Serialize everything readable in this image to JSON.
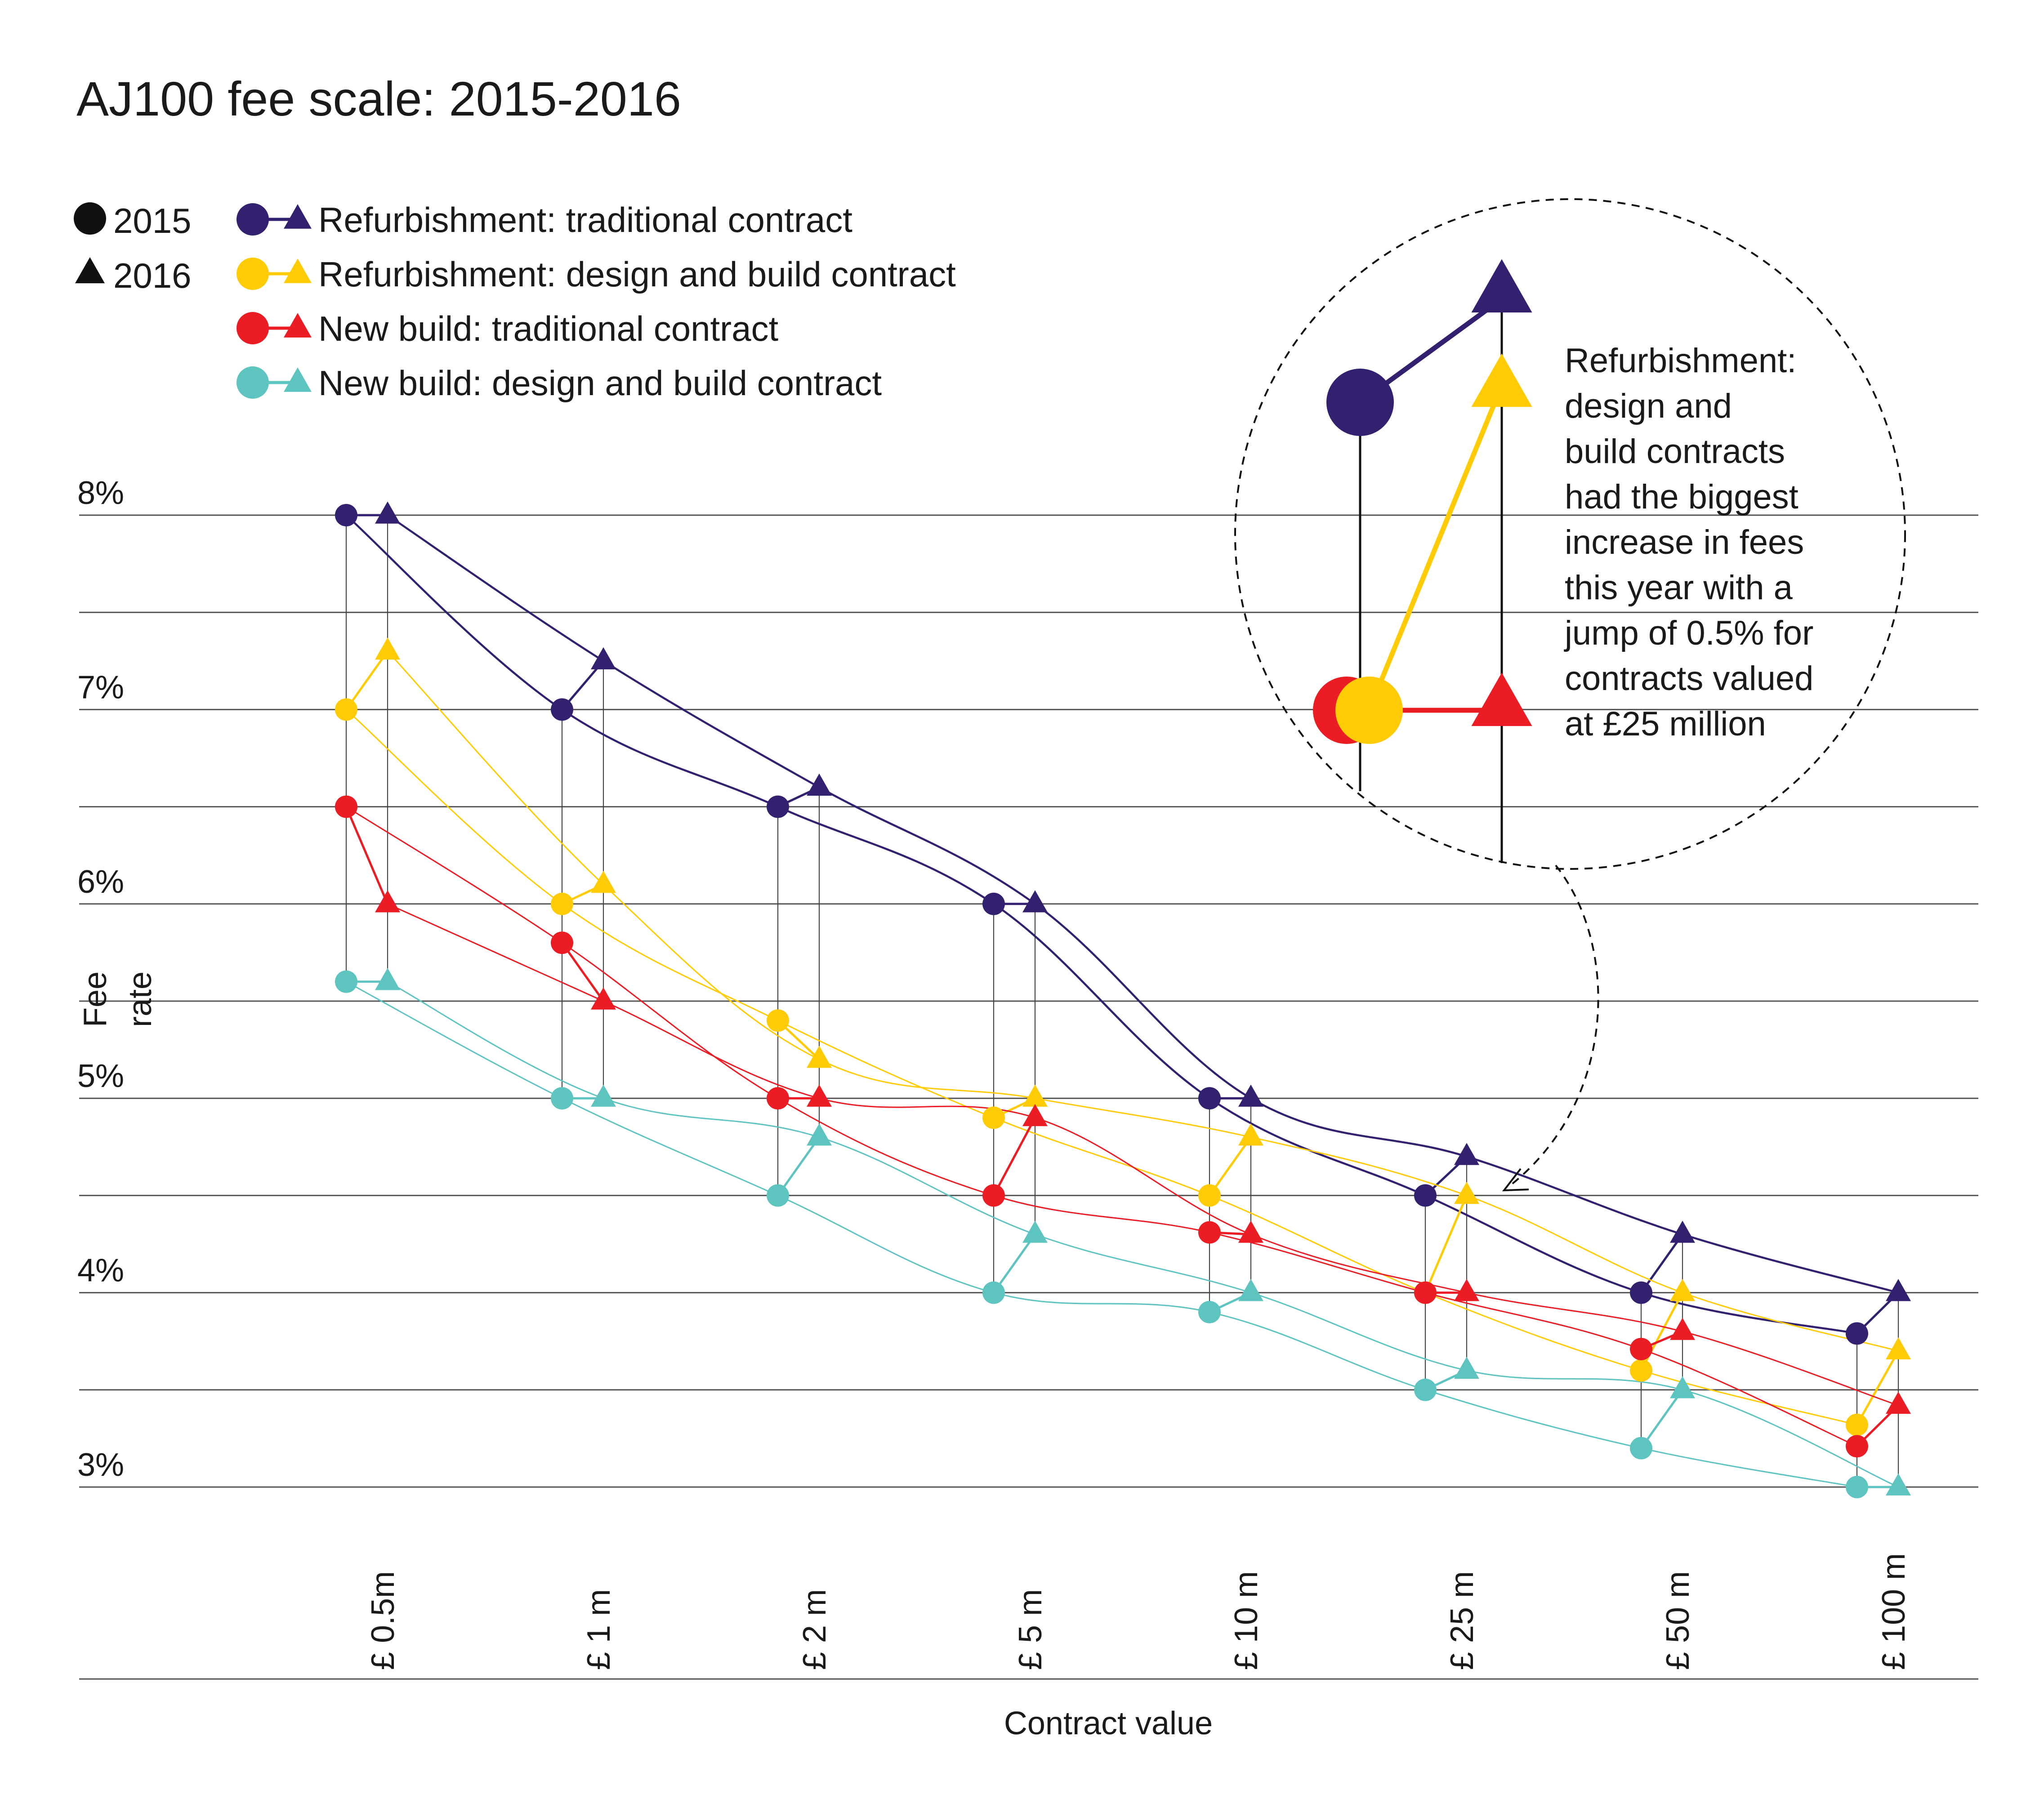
{
  "chart_data": {
    "type": "line",
    "title": "AJ100 fee scale: 2015-2016",
    "xlabel": "Contract value",
    "ylabel": "Fee rate",
    "ylim": [
      3,
      8
    ],
    "y_ticks": [
      {
        "value": 8,
        "label": "8%"
      },
      {
        "value": 7,
        "label": "7%"
      },
      {
        "value": 6,
        "label": "6%"
      },
      {
        "value": 5,
        "label": "5%"
      },
      {
        "value": 4,
        "label": "4%"
      },
      {
        "value": 3,
        "label": "3%"
      }
    ],
    "grid_values": [
      8,
      7.5,
      7,
      6.5,
      6,
      5.5,
      5,
      4.5,
      4,
      3.5,
      3
    ],
    "categories": [
      "£ 0.5m",
      "£ 1 m",
      "£ 2 m",
      "£ 5 m",
      "£ 10 m",
      "£ 25 m",
      "£ 50 m",
      "£ 100 m"
    ],
    "year_legend": [
      {
        "label": "2015",
        "marker": "circle"
      },
      {
        "label": "2016",
        "marker": "triangle"
      }
    ],
    "series": [
      {
        "name": "Refurbishment: traditional contract",
        "color": "#33206e",
        "values_2015": [
          8.0,
          7.0,
          6.5,
          6.0,
          5.0,
          4.5,
          4.0,
          3.79
        ],
        "values_2016": [
          8.0,
          7.25,
          6.6,
          6.0,
          5.0,
          4.7,
          4.3,
          4.0
        ]
      },
      {
        "name": "Refurbishment: design and build contract",
        "color": "#ffcb05",
        "values_2015": [
          7.0,
          6.0,
          5.4,
          4.9,
          4.5,
          4.0,
          3.6,
          3.32
        ],
        "values_2016": [
          7.3,
          6.1,
          5.2,
          5.0,
          4.8,
          4.5,
          4.0,
          3.7
        ]
      },
      {
        "name": "New build: traditional contract",
        "color": "#ec1c24",
        "values_2015": [
          6.5,
          5.8,
          5.0,
          4.5,
          4.31,
          4.0,
          3.71,
          3.21
        ],
        "values_2016": [
          6.0,
          5.5,
          5.0,
          4.9,
          4.3,
          4.0,
          3.8,
          3.42
        ]
      },
      {
        "name": "New build: design and build contract",
        "color": "#5ec4bf",
        "values_2015": [
          5.6,
          5.0,
          4.5,
          4.0,
          3.9,
          3.5,
          3.2,
          3.0
        ],
        "values_2016": [
          5.6,
          5.0,
          4.8,
          4.3,
          4.0,
          3.6,
          3.5,
          3.0
        ]
      }
    ],
    "annotation": {
      "lines": [
        "Refurbishment:",
        "design and",
        "build contracts",
        "had the biggest",
        "increase in fees",
        "this year with a",
        "jump of 0.5% for",
        "contracts valued",
        "at £25 million"
      ]
    }
  }
}
